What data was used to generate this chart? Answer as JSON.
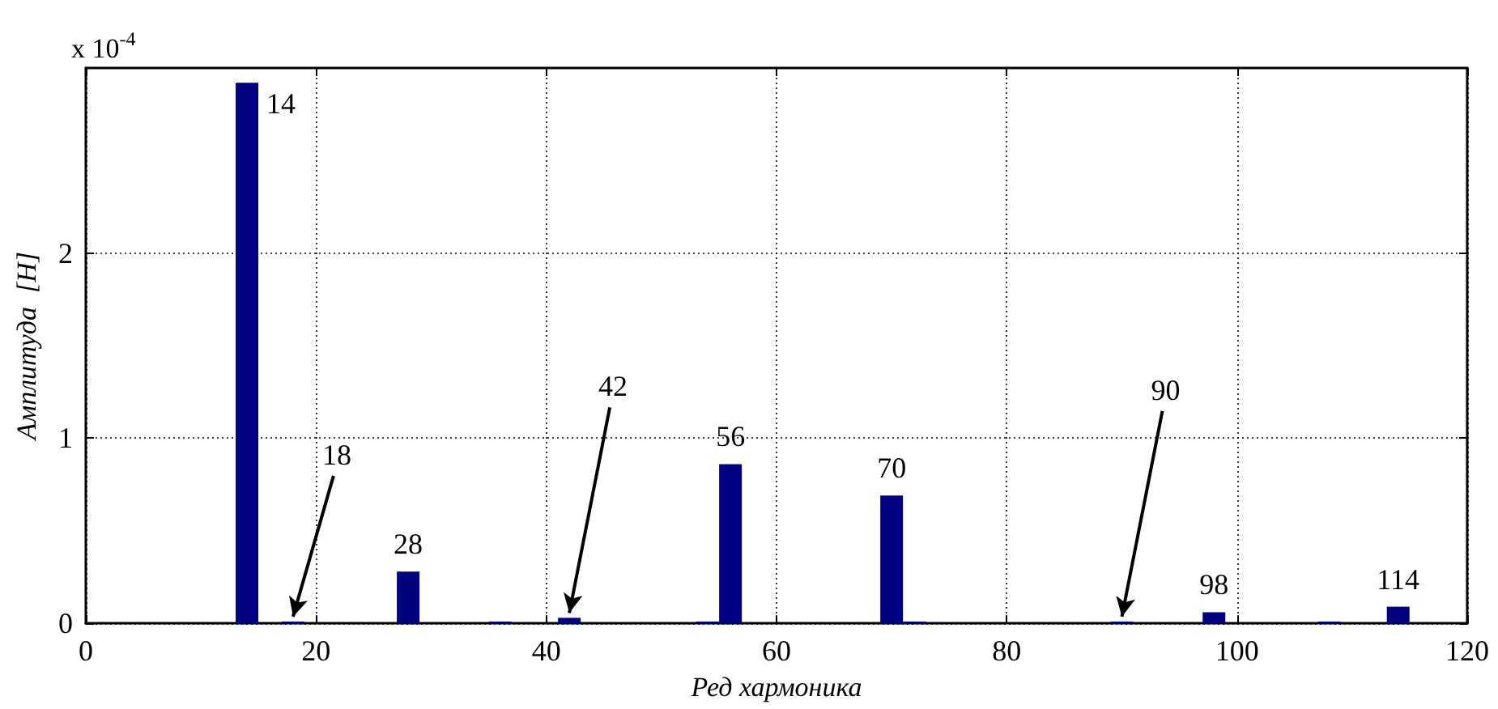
{
  "chart_data": {
    "type": "bar",
    "xlabel": "Ред хармоника",
    "ylabel": "Амплитуда  [H]",
    "x": [
      14,
      18,
      28,
      36,
      42,
      54,
      56,
      70,
      72,
      90,
      98,
      108,
      114
    ],
    "values": [
      2.92,
      0.01,
      0.28,
      0.01,
      0.03,
      0.01,
      0.86,
      0.69,
      0.01,
      0.01,
      0.06,
      0.01,
      0.09
    ],
    "color": "#000080",
    "xlim": [
      0,
      120
    ],
    "xticks": [
      0,
      20,
      40,
      60,
      80,
      100,
      120
    ],
    "ylim": [
      0,
      3
    ],
    "yticks": [
      0,
      1,
      2
    ],
    "grid": true,
    "annotations": [
      "x 10$^{-4}$",
      {
        "text": "14",
        "x": 14,
        "y": 2.92
      },
      {
        "text": "18",
        "x": 18,
        "y": 0.01
      },
      {
        "text": "28",
        "x": 28,
        "y": 0.28
      },
      {
        "text": "42",
        "x": 42,
        "y": 0.03
      },
      {
        "text": "56",
        "x": 56,
        "y": 0.86
      },
      {
        "text": "70",
        "x": 70,
        "y": 0.69
      },
      {
        "text": "90",
        "x": 90,
        "y": 0.01
      },
      {
        "text": "98",
        "x": 98,
        "y": 0.06
      },
      {
        "text": "114",
        "x": 114,
        "y": 0.09
      }
    ]
  }
}
